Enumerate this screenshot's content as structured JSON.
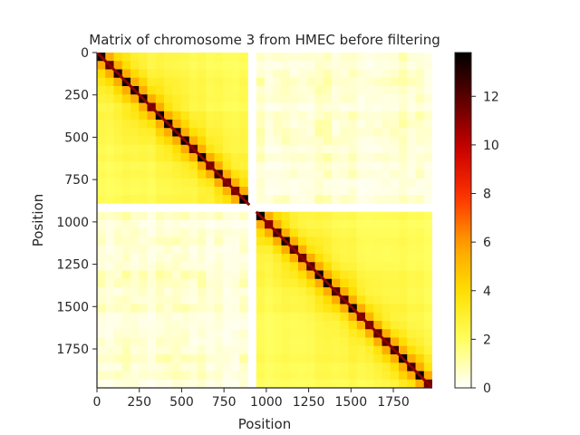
{
  "chart_data": {
    "type": "heatmap",
    "title": "Matrix of chromosome 3 from HMEC before filtering",
    "xlabel": "Position",
    "ylabel": "Position",
    "xlim": [
      0,
      1980
    ],
    "ylim": [
      1980,
      0
    ],
    "x_ticks": [
      0,
      250,
      500,
      750,
      1000,
      1250,
      1500,
      1750
    ],
    "y_ticks": [
      0,
      250,
      500,
      750,
      1000,
      1250,
      1500,
      1750
    ],
    "colormap": "hot_r",
    "colors": [
      "#ffffff",
      "#ffff60",
      "#ffe000",
      "#ffa000",
      "#ff3000",
      "#c80000",
      "#600000",
      "#000000"
    ],
    "colorbar": {
      "range": [
        0,
        13.8
      ],
      "ticks": [
        0,
        2,
        4,
        6,
        8,
        10,
        12
      ]
    },
    "matrix_size": 1980,
    "blocks": [
      {
        "start": 0,
        "end": 900,
        "diagonal_value": 11,
        "background_value": 1.6
      },
      {
        "start": 940,
        "end": 1980,
        "diagonal_value": 11,
        "background_value": 1.6
      }
    ],
    "filtered_gap": [
      900,
      940
    ],
    "inter_block_value": 0.5
  }
}
